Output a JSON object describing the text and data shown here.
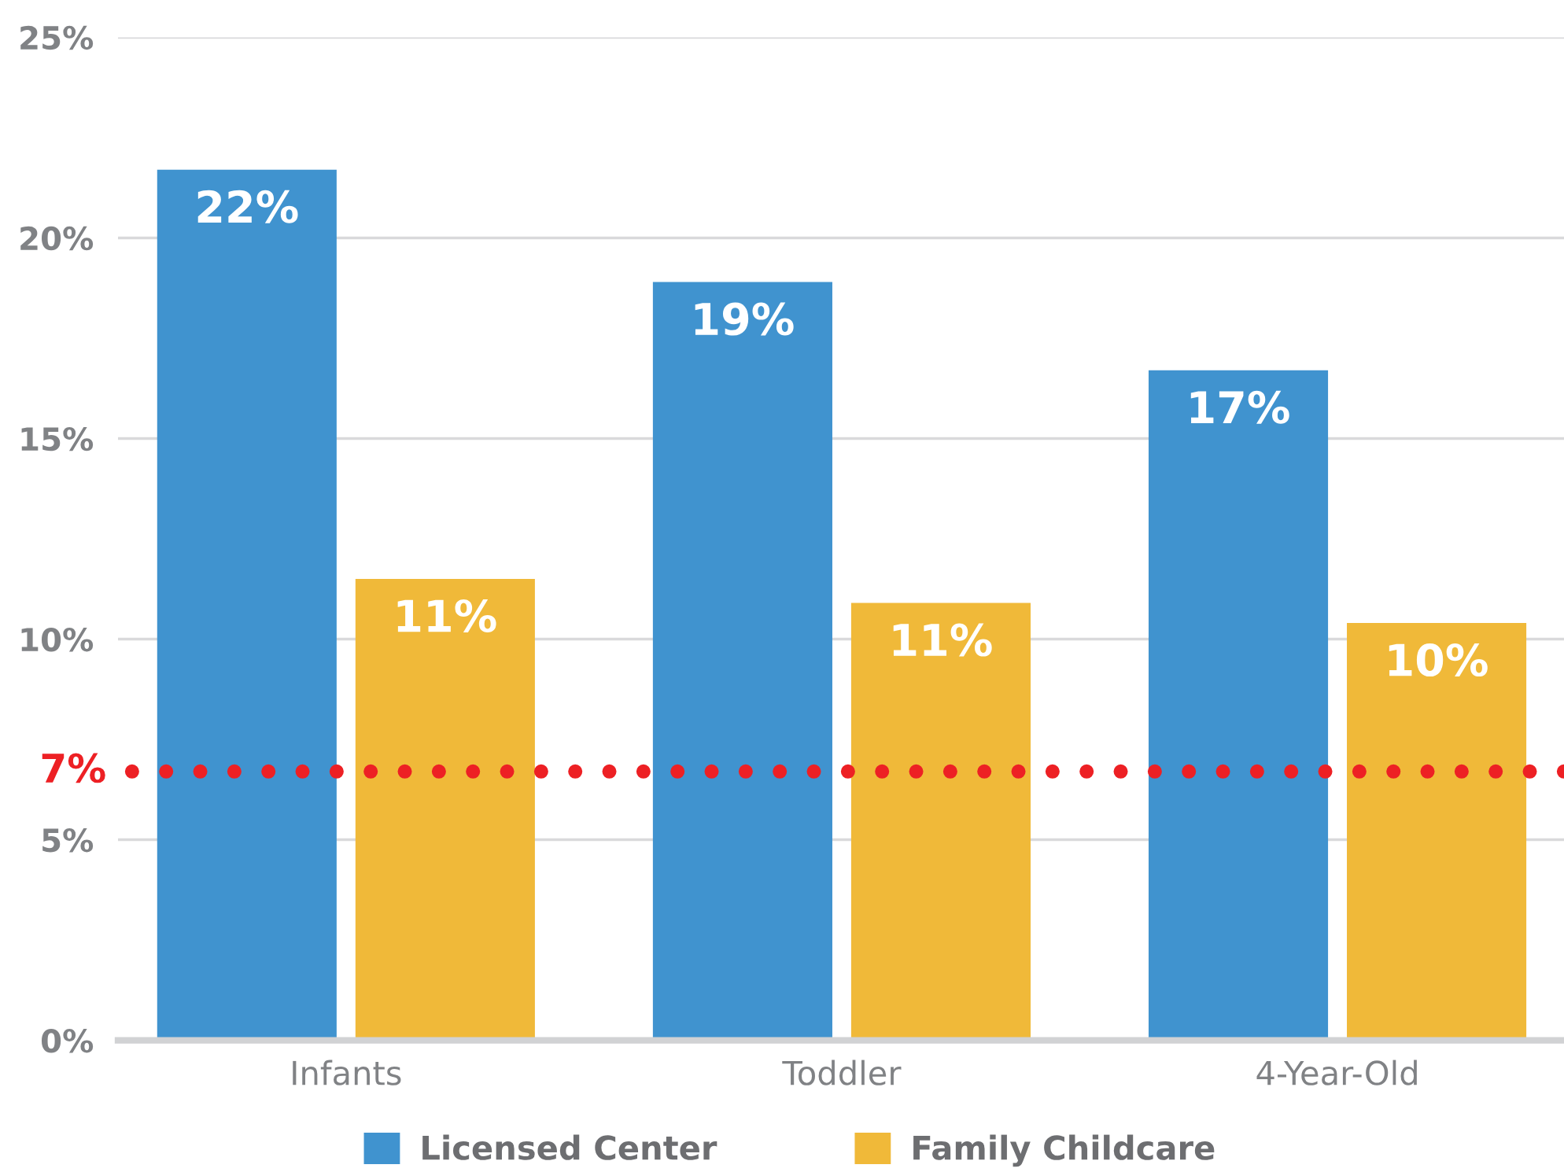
{
  "chart_data": {
    "type": "bar",
    "categories": [
      "Infants",
      "Toddler",
      "4-Year-Old"
    ],
    "series": [
      {
        "name": "Licensed Center",
        "color": "#4093cf",
        "values": [
          21.7,
          18.9,
          16.7
        ],
        "value_labels": [
          "22%",
          "19%",
          "17%"
        ]
      },
      {
        "name": "Family Childcare",
        "color": "#f0b939",
        "values": [
          11.5,
          10.9,
          10.4
        ],
        "value_labels": [
          "11%",
          "11%",
          "10%"
        ]
      }
    ],
    "ylim": [
      0,
      25
    ],
    "yticks": [
      {
        "value": 0,
        "label": "0%"
      },
      {
        "value": 5,
        "label": "5%"
      },
      {
        "value": 10,
        "label": "10%"
      },
      {
        "value": 15,
        "label": "15%"
      },
      {
        "value": 20,
        "label": "20%"
      },
      {
        "value": 25,
        "label": "25%"
      }
    ],
    "grid": "y",
    "legend": "bottom",
    "ref_lines": [
      {
        "axis": "y",
        "value": 6.7,
        "label": "7%",
        "color": "#ed2024",
        "line_style": "dotted"
      }
    ]
  }
}
